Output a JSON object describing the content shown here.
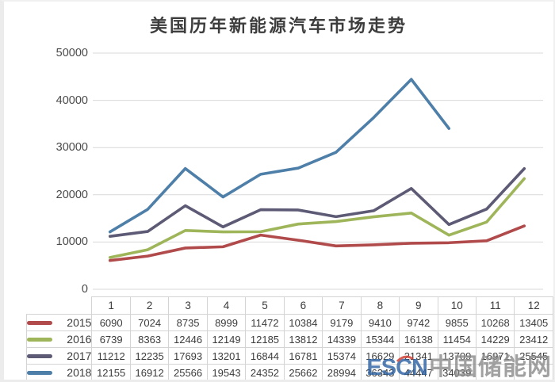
{
  "title": "美国历年新能源汽车市场走势",
  "watermark": {
    "logo_text": "ESCN",
    "site_text": "中国储能网",
    "logo_color": "#2e63a4",
    "site_color": "#8d8d8d",
    "accent_color": "#cf3b2f"
  },
  "chart_data": {
    "type": "line",
    "title": "美国历年新能源汽车市场走势",
    "categories": [
      "1",
      "2",
      "3",
      "4",
      "5",
      "6",
      "7",
      "8",
      "9",
      "10",
      "11",
      "12"
    ],
    "series": [
      {
        "name": "2015",
        "color": "#b14a4b",
        "values": [
          6090,
          7024,
          8735,
          8999,
          11472,
          10384,
          9179,
          9410,
          9742,
          9855,
          10268,
          13405
        ]
      },
      {
        "name": "2016",
        "color": "#9fb55a",
        "values": [
          6739,
          8363,
          12446,
          12149,
          12185,
          13812,
          14339,
          15344,
          16138,
          11454,
          14229,
          23412
        ]
      },
      {
        "name": "2017",
        "color": "#5d5a75",
        "values": [
          11212,
          12235,
          17693,
          13201,
          16844,
          16781,
          15374,
          16629,
          21341,
          13709,
          16971,
          25545
        ]
      },
      {
        "name": "2018",
        "color": "#4e7fa9",
        "values": [
          12155,
          16912,
          25566,
          19543,
          24352,
          25662,
          28994,
          36343,
          44447,
          34039,
          null,
          null
        ]
      }
    ],
    "xlabel": "",
    "ylabel": "",
    "ylim": [
      0,
      50000
    ],
    "yticks": [
      0,
      10000,
      20000,
      30000,
      40000,
      50000
    ],
    "grid": true,
    "legend_position": "table-left"
  }
}
